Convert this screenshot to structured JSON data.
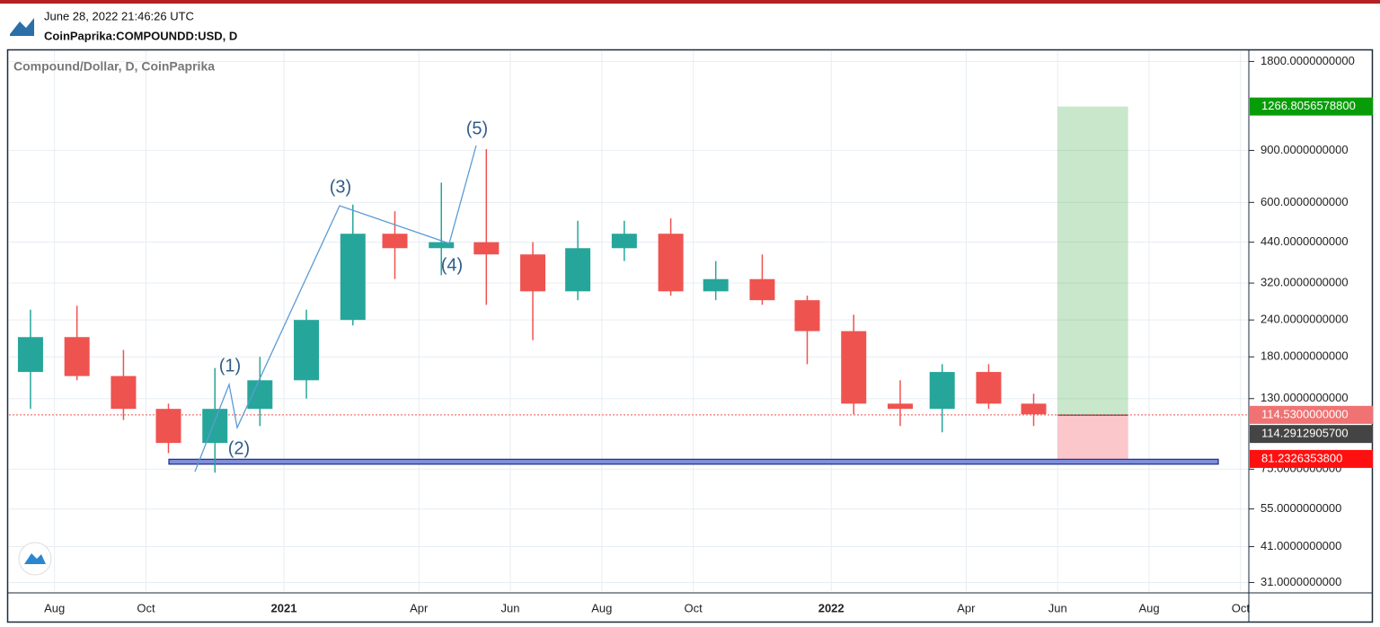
{
  "header": {
    "timestamp": "June 28, 2022 21:46:26 UTC",
    "symbol": "CoinPaprika:COMPOUNDD:USD, D"
  },
  "chart_data": {
    "type": "candlestick",
    "title": "Compound/Dollar, D, CoinPaprika",
    "log_scale": true,
    "grid": true,
    "up_color": "#26a69a",
    "down_color": "#ef5350",
    "x": [
      "2020-07",
      "2020-08",
      "2020-09",
      "2020-10",
      "2020-11",
      "2020-12",
      "2021-01",
      "2021-02",
      "2021-03",
      "2021-04",
      "2021-05",
      "2021-06",
      "2021-07",
      "2021-08",
      "2021-09",
      "2021-10",
      "2021-11",
      "2021-12",
      "2022-01",
      "2022-02",
      "2022-03",
      "2022-04",
      "2022-05"
    ],
    "open": [
      160,
      210,
      155,
      120,
      92,
      120,
      150,
      240,
      470,
      420,
      440,
      400,
      300,
      420,
      470,
      300,
      330,
      280,
      220,
      125,
      120,
      160,
      125
    ],
    "high": [
      260,
      268,
      190,
      125,
      165,
      180,
      260,
      590,
      560,
      700,
      910,
      440,
      520,
      520,
      530,
      380,
      400,
      290,
      250,
      150,
      170,
      170,
      135
    ],
    "low": [
      120,
      150,
      110,
      85,
      73,
      105,
      130,
      230,
      330,
      340,
      270,
      205,
      280,
      380,
      290,
      280,
      270,
      170,
      115,
      105,
      100,
      120,
      105
    ],
    "close": [
      210,
      155,
      120,
      92,
      120,
      150,
      240,
      470,
      420,
      440,
      400,
      300,
      420,
      470,
      300,
      330,
      280,
      220,
      125,
      120,
      160,
      125,
      115
    ],
    "xticks": [
      {
        "value": "2020-08",
        "label": "Aug"
      },
      {
        "value": "2020-10",
        "label": "Oct"
      },
      {
        "value": "2021-01",
        "label": "2021"
      },
      {
        "value": "2021-04",
        "label": "Apr"
      },
      {
        "value": "2021-06",
        "label": "Jun"
      },
      {
        "value": "2021-08",
        "label": "Aug"
      },
      {
        "value": "2021-10",
        "label": "Oct"
      },
      {
        "value": "2022-01",
        "label": "2022"
      },
      {
        "value": "2022-04",
        "label": "Apr"
      },
      {
        "value": "2022-06",
        "label": "Jun"
      },
      {
        "value": "2022-08",
        "label": "Aug"
      },
      {
        "value": "2022-10",
        "label": "Oct"
      }
    ],
    "ylim": [
      29,
      1950
    ],
    "yticks": [
      {
        "value": 31,
        "label": "31.0000000000"
      },
      {
        "value": 41,
        "label": "41.0000000000"
      },
      {
        "value": 55,
        "label": "55.0000000000"
      },
      {
        "value": 75,
        "label": "75.0000000000"
      },
      {
        "value": 130,
        "label": "130.0000000000"
      },
      {
        "value": 180,
        "label": "180.0000000000"
      },
      {
        "value": 240,
        "label": "240.0000000000"
      },
      {
        "value": 320,
        "label": "320.0000000000"
      },
      {
        "value": 440,
        "label": "440.0000000000"
      },
      {
        "value": 600,
        "label": "600.0000000000"
      },
      {
        "value": 900,
        "label": "900.0000000000"
      },
      {
        "value": 1800,
        "label": "1800.0000000000"
      }
    ],
    "annotations": [
      "(1)",
      "(2)",
      "(3)",
      "(4)",
      "(5)"
    ],
    "support_zone": [
      78,
      81
    ],
    "position": {
      "x": [
        "2022-06",
        "2022-07"
      ],
      "target": {
        "value": 1266.80565788,
        "label": "1266.8056578800"
      },
      "entry": {
        "value": 114.29129057,
        "label": "114.2912905700"
      },
      "stop": {
        "value": 81.23263538,
        "label": "81.2326353800"
      }
    },
    "last_price": {
      "value": 114.53,
      "label": "114.5300000000"
    }
  }
}
